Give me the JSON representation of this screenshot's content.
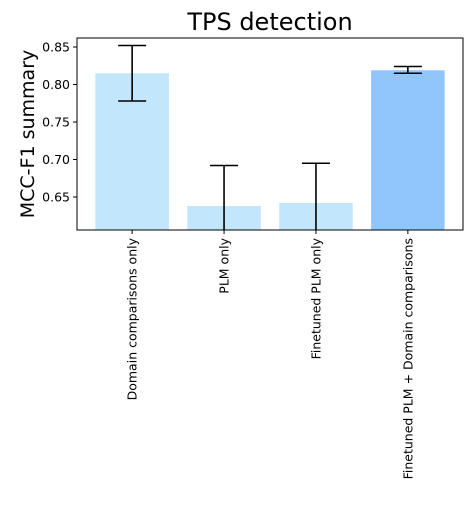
{
  "chart_data": {
    "type": "bar",
    "title": "TPS detection",
    "xlabel": "",
    "ylabel": "MCC-F1 summary",
    "categories": [
      "Domain comparisons only",
      "PLM only",
      "Finetuned PLM only",
      "Finetuned PLM + Domain comparisons"
    ],
    "values": [
      0.815,
      0.638,
      0.642,
      0.819
    ],
    "error_low": [
      0.778,
      0.605,
      0.605,
      0.815
    ],
    "error_high": [
      0.852,
      0.692,
      0.695,
      0.824
    ],
    "ylim": [
      0.606,
      0.862
    ],
    "yticks": [
      0.65,
      0.7,
      0.75,
      0.8,
      0.85
    ],
    "ytick_labels": [
      "0.65",
      "0.70",
      "0.75",
      "0.80",
      "0.85"
    ],
    "grid": false,
    "colors": [
      "#c2e6fb",
      "#c2e6fb",
      "#c2e6fb",
      "#8fc7fd"
    ]
  }
}
